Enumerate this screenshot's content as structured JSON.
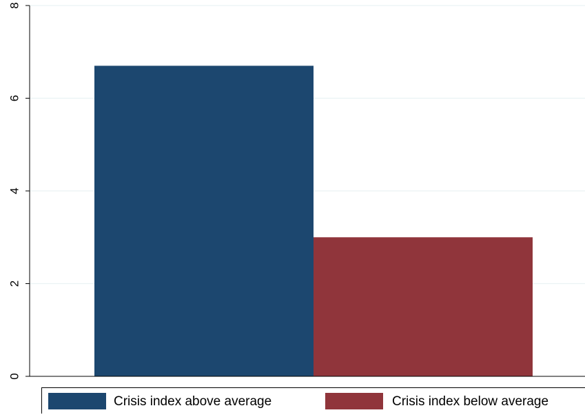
{
  "chart_data": {
    "type": "bar",
    "title": "",
    "xlabel": "",
    "ylabel": "",
    "ylim": [
      0,
      8
    ],
    "yticks": [
      0,
      2,
      4,
      6,
      8
    ],
    "ytick_labels": [
      "0",
      "2",
      "4",
      "6",
      "8"
    ],
    "grid": true,
    "legend_position": "bottom",
    "series": [
      {
        "name": "Crisis index above average",
        "values": [
          6.7
        ],
        "color": "#1c476f"
      },
      {
        "name": "Crisis index below average",
        "values": [
          3.0
        ],
        "color": "#90353b"
      }
    ]
  }
}
